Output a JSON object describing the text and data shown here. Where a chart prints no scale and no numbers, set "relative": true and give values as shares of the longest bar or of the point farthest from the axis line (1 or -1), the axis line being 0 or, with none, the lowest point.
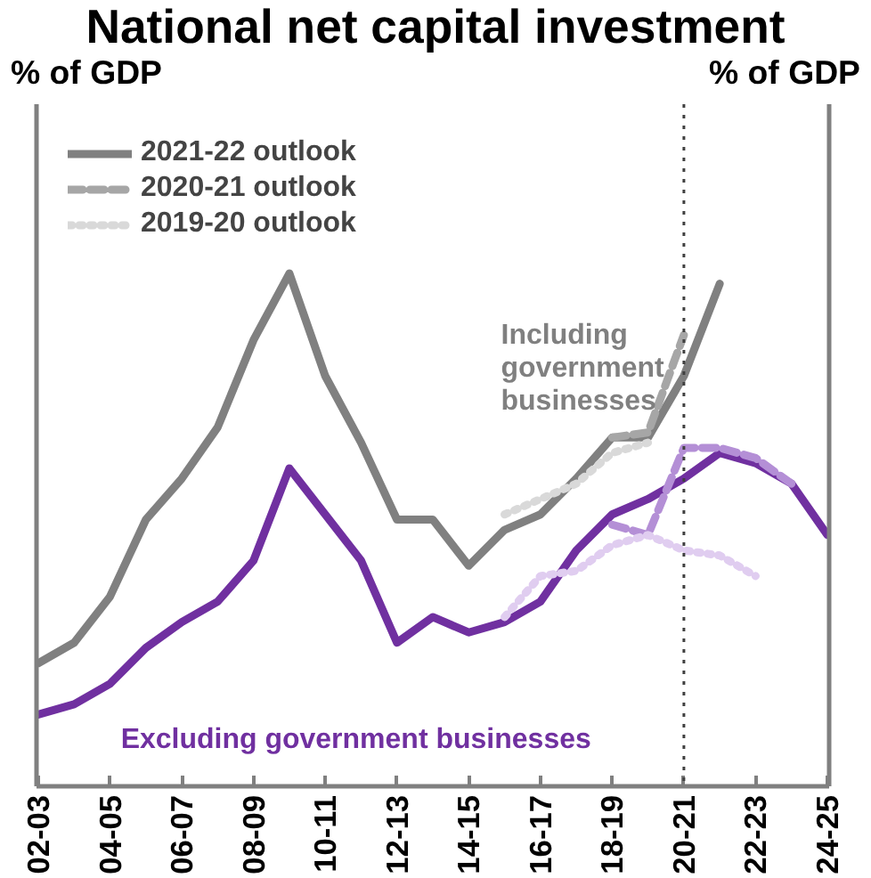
{
  "chart_data": {
    "type": "line",
    "title": "National net capital investment",
    "relative": true,
    "categories": [
      "02-03",
      null,
      "04-05",
      null,
      "06-07",
      null,
      "08-09",
      null,
      "10-11",
      null,
      "12-13",
      null,
      "14-15",
      null,
      "16-17",
      null,
      "18-19",
      null,
      "20-21",
      null,
      "22-23",
      null,
      "24-25"
    ],
    "series": [
      {
        "name": "2021-22 outlook",
        "color": "#808080",
        "line_style": "solid",
        "values": [
          0.24,
          0.28,
          0.37,
          0.52,
          0.6,
          0.7,
          0.87,
          1,
          0.8,
          0.67,
          0.52,
          0.52,
          0.43,
          0.5,
          0.53,
          0.6,
          0.68,
          0.68,
          0.8,
          0.98,
          null,
          null,
          null
        ]
      },
      {
        "name": "2020-21 outlook",
        "color": "#a6a6a6",
        "line_style": "dashed",
        "values": [
          null,
          null,
          null,
          null,
          null,
          null,
          null,
          null,
          null,
          null,
          null,
          null,
          null,
          null,
          null,
          null,
          0.68,
          0.69,
          0.88,
          null,
          null,
          null,
          null
        ]
      },
      {
        "name": "2019-20 outlook",
        "color": "#d9d9d9",
        "line_style": "dotted",
        "values": [
          null,
          null,
          null,
          null,
          null,
          null,
          null,
          null,
          null,
          null,
          null,
          null,
          null,
          0.53,
          0.56,
          0.59,
          0.65,
          0.67,
          null,
          null,
          null,
          null,
          null
        ]
      },
      {
        "color": "#7030a0",
        "line_style": "solid",
        "values": [
          0.14,
          0.16,
          0.2,
          0.27,
          0.32,
          0.36,
          0.44,
          0.62,
          0.53,
          0.44,
          0.28,
          0.33,
          0.3,
          0.32,
          0.36,
          0.46,
          0.53,
          0.56,
          0.6,
          0.65,
          0.63,
          0.59,
          0.49
        ]
      },
      {
        "color": "#b48fd6",
        "line_style": "dashed",
        "values": [
          null,
          null,
          null,
          null,
          null,
          null,
          null,
          null,
          null,
          null,
          null,
          null,
          null,
          null,
          null,
          null,
          0.51,
          0.49,
          0.66,
          0.66,
          0.64,
          0.59,
          null
        ]
      },
      {
        "color": "#e0cdf0",
        "line_style": "dotted",
        "values": [
          null,
          null,
          null,
          null,
          null,
          null,
          null,
          null,
          null,
          null,
          null,
          null,
          null,
          0.33,
          0.41,
          0.42,
          0.47,
          0.49,
          0.46,
          0.45,
          0.41,
          null,
          null
        ]
      }
    ],
    "annotations": [
      "Including government businesses",
      "Excluding government businesses",
      "% of GDP",
      "% of GDP"
    ],
    "ref_lines": [
      {
        "axis": "x",
        "value": "20-21",
        "color": "#404040",
        "line_style": "dotted"
      }
    ],
    "legend": "top left",
    "grid": false,
    "marker": "none",
    "tick_labels": "x"
  }
}
